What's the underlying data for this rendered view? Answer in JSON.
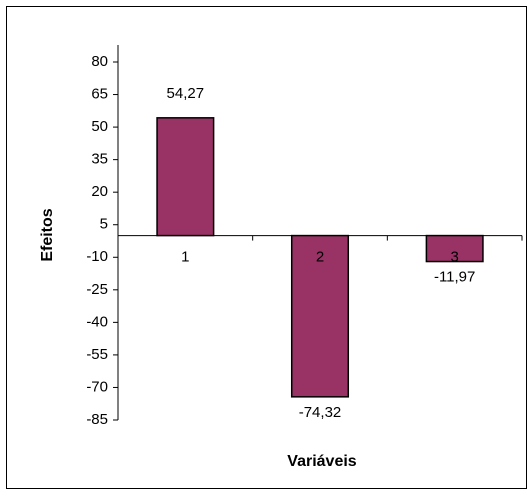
{
  "chart_data": {
    "type": "bar",
    "x_label": "Variáveis",
    "y_label": "Efeitos",
    "categories": [
      "1",
      "2",
      "3"
    ],
    "values": [
      54.27,
      -74.32,
      -11.97
    ],
    "value_labels": [
      "54,27",
      "-74,32",
      "-11,97"
    ],
    "color": "#993366",
    "ylim": [
      -85,
      80
    ],
    "yticks": [
      80,
      65,
      50,
      35,
      20,
      5,
      -10,
      -25,
      -40,
      -55,
      -70,
      -85
    ]
  }
}
